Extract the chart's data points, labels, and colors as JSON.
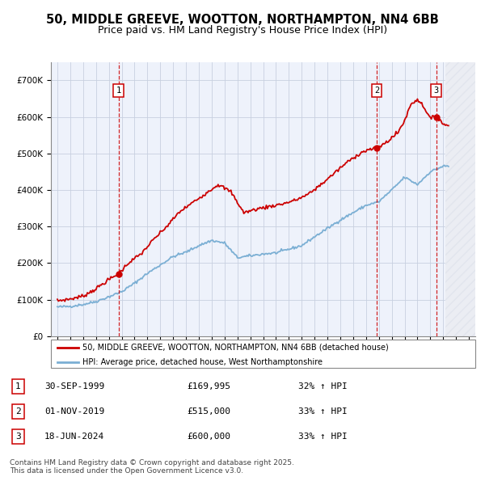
{
  "title": "50, MIDDLE GREEVE, WOOTTON, NORTHAMPTON, NN4 6BB",
  "subtitle": "Price paid vs. HM Land Registry's House Price Index (HPI)",
  "ylim": [
    0,
    750000
  ],
  "yticks": [
    0,
    100000,
    200000,
    300000,
    400000,
    500000,
    600000,
    700000
  ],
  "ytick_labels": [
    "£0",
    "£100K",
    "£200K",
    "£300K",
    "£400K",
    "£500K",
    "£600K",
    "£700K"
  ],
  "xlim_start": 1994.5,
  "xlim_end": 2027.5,
  "hatch_start": 2025.2,
  "transactions": [
    {
      "year": 1999.75,
      "price": 169995,
      "label": "1",
      "date": "30-SEP-1999",
      "price_str": "£169,995",
      "hpi_pct": "32% ↑ HPI"
    },
    {
      "year": 2019.83,
      "price": 515000,
      "label": "2",
      "date": "01-NOV-2019",
      "price_str": "£515,000",
      "hpi_pct": "33% ↑ HPI"
    },
    {
      "year": 2024.46,
      "price": 600000,
      "label": "3",
      "date": "18-JUN-2024",
      "price_str": "£600,000",
      "hpi_pct": "33% ↑ HPI"
    }
  ],
  "red_line_color": "#cc0000",
  "blue_line_color": "#7bafd4",
  "background_color": "#eef2fb",
  "legend_line1": "50, MIDDLE GREEVE, WOOTTON, NORTHAMPTON, NN4 6BB (detached house)",
  "legend_line2": "HPI: Average price, detached house, West Northamptonshire",
  "footer": "Contains HM Land Registry data © Crown copyright and database right 2025.\nThis data is licensed under the Open Government Licence v3.0.",
  "title_fontsize": 10.5,
  "subtitle_fontsize": 9,
  "tick_fontsize": 7.5,
  "grid_color": "#c8d0e0",
  "hpi_control_years": [
    1995.0,
    1996.0,
    1997.0,
    1998.0,
    1999.0,
    2000.0,
    2001.0,
    2002.0,
    2003.0,
    2004.0,
    2005.0,
    2006.0,
    2007.0,
    2008.0,
    2009.0,
    2010.0,
    2011.0,
    2012.0,
    2013.0,
    2014.0,
    2015.0,
    2016.0,
    2017.0,
    2018.0,
    2019.0,
    2020.0,
    2021.0,
    2022.0,
    2023.0,
    2024.0,
    2025.0
  ],
  "hpi_control_vals": [
    80000,
    82000,
    87000,
    95000,
    108000,
    122000,
    145000,
    172000,
    195000,
    218000,
    230000,
    248000,
    262000,
    255000,
    215000,
    220000,
    225000,
    228000,
    238000,
    248000,
    272000,
    295000,
    318000,
    338000,
    358000,
    368000,
    400000,
    435000,
    415000,
    450000,
    465000
  ],
  "prop_control_years": [
    1995.0,
    1996.0,
    1997.0,
    1998.0,
    1999.0,
    1999.75,
    2000.5,
    2001.5,
    2002.5,
    2003.5,
    2004.5,
    2005.5,
    2006.5,
    2007.5,
    2008.5,
    2009.5,
    2010.5,
    2011.5,
    2012.5,
    2013.5,
    2014.5,
    2015.5,
    2016.5,
    2017.5,
    2018.5,
    2019.0,
    2019.83,
    2020.5,
    2021.5,
    2022.0,
    2022.5,
    2023.0,
    2023.5,
    2024.0,
    2024.46,
    2024.8,
    2025.0
  ],
  "prop_control_vals": [
    97000,
    102000,
    110000,
    130000,
    155000,
    169995,
    200000,
    225000,
    265000,
    300000,
    340000,
    365000,
    390000,
    415000,
    395000,
    338000,
    348000,
    355000,
    362000,
    372000,
    388000,
    415000,
    445000,
    475000,
    500000,
    508000,
    515000,
    528000,
    558000,
    590000,
    635000,
    648000,
    628000,
    595000,
    600000,
    592000,
    578000
  ]
}
